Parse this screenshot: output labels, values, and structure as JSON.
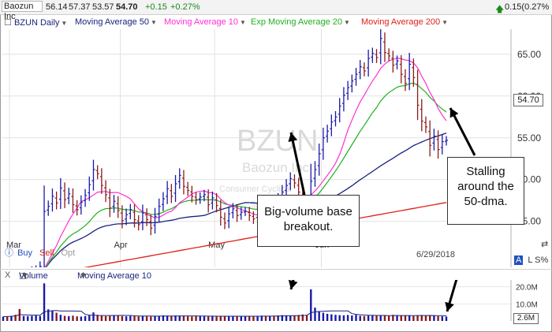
{
  "topbar": {
    "symbol_name": "Baozun Inc",
    "open": "56.14",
    "high": "57.37",
    "low": "53.57",
    "close": "54.70",
    "change": "+0.15",
    "change_pct": "+0.27%",
    "right_change": "0.15(0.27%"
  },
  "legend": {
    "symbol": "BZUN Daily",
    "ma50": "Moving Average 50",
    "ma10": "Moving Average 10",
    "ema20": "Exp Moving Average 20",
    "ma200": "Moving Average 200"
  },
  "watermark": {
    "ticker": "BZUN",
    "company": "Baozun Inc",
    "sector": "Consumer Cyclical",
    "sub": "Sp"
  },
  "trade": {
    "buy": "Buy",
    "sell": "Sell",
    "opt": "Opt"
  },
  "corner": {
    "letter": "A",
    "ls": "L S%"
  },
  "last_price_label": "54.70",
  "date_label": "6/29/2018",
  "volume_panel": {
    "x": "X",
    "volume": "Volume",
    "ma10": "Moving Average 10",
    "ticks": [
      "20.0M",
      "10.0M"
    ],
    "last_volume": "2.6M"
  },
  "callouts": {
    "breakout": "Big-volume base breakout.",
    "stalling": "Stalling around the 50-dma."
  },
  "colors": {
    "up": "#1a1aa8",
    "down": "#8b1a1a",
    "ma50": "#1a237e",
    "ma10": "#ff2fd4",
    "ema20": "#1fb21f",
    "ma200": "#e0201a"
  },
  "chart_data": {
    "type": "candlestick",
    "title": "BZUN Daily",
    "x_labels": [
      "Mar",
      "Apr",
      "May",
      "Jun"
    ],
    "y_ticks": [
      45,
      50,
      55,
      60,
      65
    ],
    "y_range": [
      39.5,
      68
    ],
    "volume_ticks": [
      10000000,
      20000000
    ],
    "volume_range": [
      0,
      24000000
    ],
    "ohlc_close": [
      38.2,
      38.1,
      38.3,
      38.0,
      37.9,
      38.4,
      38.6,
      39.0,
      39.2,
      39.6,
      46.2,
      46.8,
      48.0,
      47.2,
      49.0,
      47.6,
      48.3,
      47.0,
      46.4,
      47.3,
      48.1,
      49.4,
      51.2,
      50.7,
      49.3,
      48.2,
      46.6,
      47.4,
      46.3,
      45.1,
      45.8,
      46.4,
      45.2,
      44.6,
      46.0,
      45.2,
      44.2,
      45.6,
      46.8,
      47.7,
      48.9,
      48.0,
      49.5,
      50.5,
      49.2,
      48.7,
      48.0,
      47.6,
      47.9,
      48.2,
      47.0,
      47.8,
      46.9,
      45.5,
      44.8,
      45.9,
      46.5,
      45.7,
      46.1,
      46.2,
      45.7,
      45.3,
      46.0,
      46.8,
      46.2,
      47.0,
      46.4,
      47.5,
      48.5,
      49.3,
      50.1,
      49.6,
      48.5,
      46.2,
      45.7,
      49.8,
      51.2,
      53.1,
      55.0,
      55.8,
      56.9,
      57.5,
      58.8,
      60.1,
      61.0,
      61.8,
      62.6,
      63.5,
      63.0,
      64.5,
      65.1,
      64.6,
      66.9,
      65.2,
      64.8,
      63.7,
      64.2,
      62.6,
      61.5,
      63.8,
      62.2,
      58.9,
      57.0,
      56.3,
      54.1,
      55.2,
      53.6,
      54.55,
      54.7
    ],
    "volume_millions": [
      2.5,
      2.7,
      3.0,
      3.6,
      7.0,
      2.9,
      2.8,
      3.0,
      3.2,
      2.9,
      22.0,
      6.8,
      6.0,
      4.8,
      3.6,
      3.0,
      2.8,
      3.1,
      2.7,
      2.6,
      2.9,
      3.2,
      5.0,
      3.6,
      3.0,
      2.8,
      2.9,
      3.4,
      3.1,
      2.8,
      2.7,
      2.9,
      3.0,
      2.6,
      2.8,
      2.7,
      2.6,
      2.9,
      3.0,
      3.3,
      3.1,
      2.9,
      3.2,
      3.0,
      2.8,
      2.7,
      2.6,
      2.8,
      2.9,
      2.7,
      2.6,
      2.8,
      2.9,
      3.0,
      2.7,
      2.6,
      2.8,
      2.9,
      2.7,
      2.6,
      2.8,
      2.7,
      2.9,
      3.1,
      3.0,
      2.8,
      3.0,
      3.2,
      3.4,
      3.3,
      3.1,
      3.0,
      3.5,
      3.8,
      3.6,
      18.5,
      7.8,
      5.4,
      4.8,
      4.2,
      3.9,
      3.6,
      3.4,
      3.3,
      3.5,
      3.2,
      3.6,
      3.0,
      2.9,
      3.1,
      3.4,
      3.0,
      3.3,
      3.1,
      2.9,
      3.6,
      3.4,
      3.0,
      3.2,
      3.1,
      2.9,
      3.3,
      3.5,
      3.1,
      3.2,
      3.0,
      2.8,
      2.7,
      2.6
    ]
  }
}
